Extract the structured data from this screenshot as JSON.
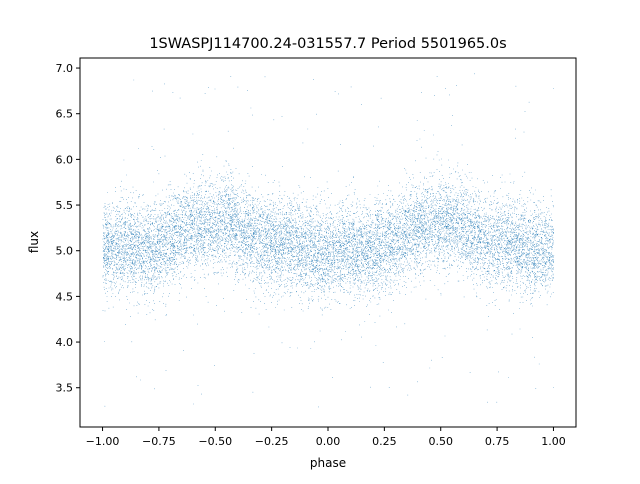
{
  "chart_data": {
    "type": "scatter",
    "title": "1SWASPJ114700.24-031557.7 Period 5501965.0s",
    "xlabel": "phase",
    "ylabel": "flux",
    "xlim": [
      -1.1,
      1.1
    ],
    "ylim": [
      3.07,
      7.11
    ],
    "x_ticks": [
      -1.0,
      -0.75,
      -0.5,
      -0.25,
      0.0,
      0.25,
      0.5,
      0.75,
      1.0
    ],
    "x_tick_labels": [
      "−1.00",
      "−0.75",
      "−0.50",
      "−0.25",
      "0.00",
      "0.25",
      "0.50",
      "0.75",
      "1.00"
    ],
    "y_ticks": [
      3.5,
      4.0,
      4.5,
      5.0,
      5.5,
      6.0,
      6.5,
      7.0
    ],
    "y_tick_labels": [
      "3.5",
      "4.0",
      "4.5",
      "5.0",
      "5.5",
      "6.0",
      "6.5",
      "7.0"
    ],
    "grid": false,
    "legend": "none",
    "point_color": "#1f77b4",
    "phase_range": [
      -1.0,
      1.0
    ],
    "approx_point_count": 14000,
    "mean_flux_profile": {
      "phase": [
        -1.0,
        -0.9,
        -0.8,
        -0.7,
        -0.6,
        -0.5,
        -0.45,
        -0.4,
        -0.3,
        -0.2,
        -0.1,
        0.0,
        0.1,
        0.2,
        0.3,
        0.4,
        0.5,
        0.55,
        0.6,
        0.7,
        0.8,
        0.9,
        1.0
      ],
      "flux": [
        5.0,
        5.08,
        5.0,
        5.12,
        5.28,
        5.3,
        5.32,
        5.25,
        5.1,
        5.08,
        5.02,
        4.98,
        5.02,
        5.0,
        5.12,
        5.28,
        5.3,
        5.32,
        5.25,
        5.1,
        5.08,
        5.02,
        5.0
      ]
    },
    "typical_scatter_sd": 0.25,
    "flux_extremes": [
      3.28,
      6.95
    ]
  }
}
